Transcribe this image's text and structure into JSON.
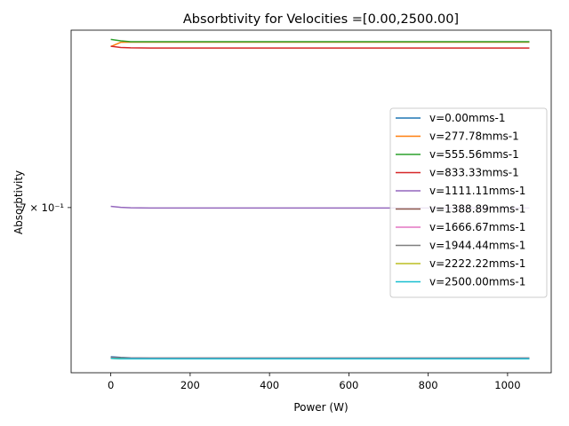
{
  "chart_data": {
    "type": "line",
    "title": "Absorbtivity for Velocities =[0.00,2500.00]",
    "xlabel": "Power (W)",
    "ylabel": "Absorbtivity",
    "xlim": [
      -100,
      1110
    ],
    "ylim": [
      0.6225,
      0.794
    ],
    "y_scale": "log",
    "x_ticks": [
      0,
      200,
      400,
      600,
      800,
      1000
    ],
    "x_tick_labels": [
      "0",
      "200",
      "400",
      "600",
      "800",
      "1000"
    ],
    "y_ticks": [
      0.7
    ],
    "y_tick_labels": [
      "7 × 10⁻¹"
    ],
    "grid": false,
    "legend_position": "right",
    "x": [
      0,
      25,
      50,
      100,
      200,
      300,
      400,
      500,
      600,
      700,
      800,
      900,
      1000,
      1055
    ],
    "series": [
      {
        "name": "v=0.00mms-1",
        "color": "#1f77b4",
        "values": [
          0.6296,
          0.6293,
          0.6291,
          0.629,
          0.629,
          0.629,
          0.629,
          0.629,
          0.629,
          0.629,
          0.629,
          0.629,
          0.629,
          0.629
        ]
      },
      {
        "name": "v=277.78mms-1",
        "color": "#ff7f0e",
        "values": [
          0.7848,
          0.7872,
          0.7873,
          0.7873,
          0.7873,
          0.7873,
          0.7873,
          0.7873,
          0.7873,
          0.7873,
          0.7873,
          0.7873,
          0.7873,
          0.7873
        ]
      },
      {
        "name": "v=555.56mms-1",
        "color": "#2ca02c",
        "values": [
          0.7888,
          0.788,
          0.7875,
          0.7875,
          0.7875,
          0.7875,
          0.7875,
          0.7875,
          0.7875,
          0.7875,
          0.7875,
          0.7875,
          0.7875,
          0.7875
        ]
      },
      {
        "name": "v=833.33mms-1",
        "color": "#d62728",
        "values": [
          0.785,
          0.7843,
          0.7841,
          0.784,
          0.784,
          0.784,
          0.784,
          0.784,
          0.784,
          0.784,
          0.784,
          0.784,
          0.784,
          0.784
        ]
      },
      {
        "name": "v=1111.11mms-1",
        "color": "#9467bd",
        "values": [
          0.7006,
          0.7001,
          0.6999,
          0.6998,
          0.6998,
          0.6998,
          0.6998,
          0.6998,
          0.6998,
          0.6998,
          0.6998,
          0.6998,
          0.6998,
          0.6998
        ]
      },
      {
        "name": "v=1388.89mms-1",
        "color": "#8c564b",
        "values": [
          0.6293,
          0.6291,
          0.629,
          0.629,
          0.629,
          0.629,
          0.629,
          0.629,
          0.629,
          0.629,
          0.629,
          0.629,
          0.629,
          0.629
        ]
      },
      {
        "name": "v=1666.67mms-1",
        "color": "#e377c2",
        "values": [
          0.6291,
          0.6289,
          0.6289,
          0.6289,
          0.6289,
          0.6289,
          0.6289,
          0.6289,
          0.6289,
          0.6289,
          0.6289,
          0.6289,
          0.6289,
          0.6289
        ]
      },
      {
        "name": "v=1944.44mms-1",
        "color": "#7f7f7f",
        "values": [
          0.629,
          0.6288,
          0.6288,
          0.6288,
          0.6288,
          0.6288,
          0.6288,
          0.6288,
          0.6288,
          0.6288,
          0.6288,
          0.6288,
          0.6288,
          0.6288
        ]
      },
      {
        "name": "v=2222.22mms-1",
        "color": "#bcbd22",
        "values": [
          0.6289,
          0.6288,
          0.6287,
          0.6287,
          0.6287,
          0.6287,
          0.6287,
          0.6287,
          0.6287,
          0.6287,
          0.6287,
          0.6287,
          0.6287,
          0.6287
        ]
      },
      {
        "name": "v=2500.00mms-1",
        "color": "#17becf",
        "values": [
          0.6289,
          0.6287,
          0.6287,
          0.6287,
          0.6287,
          0.6287,
          0.6287,
          0.6287,
          0.6287,
          0.6287,
          0.6287,
          0.6287,
          0.6287,
          0.6287
        ]
      }
    ]
  }
}
